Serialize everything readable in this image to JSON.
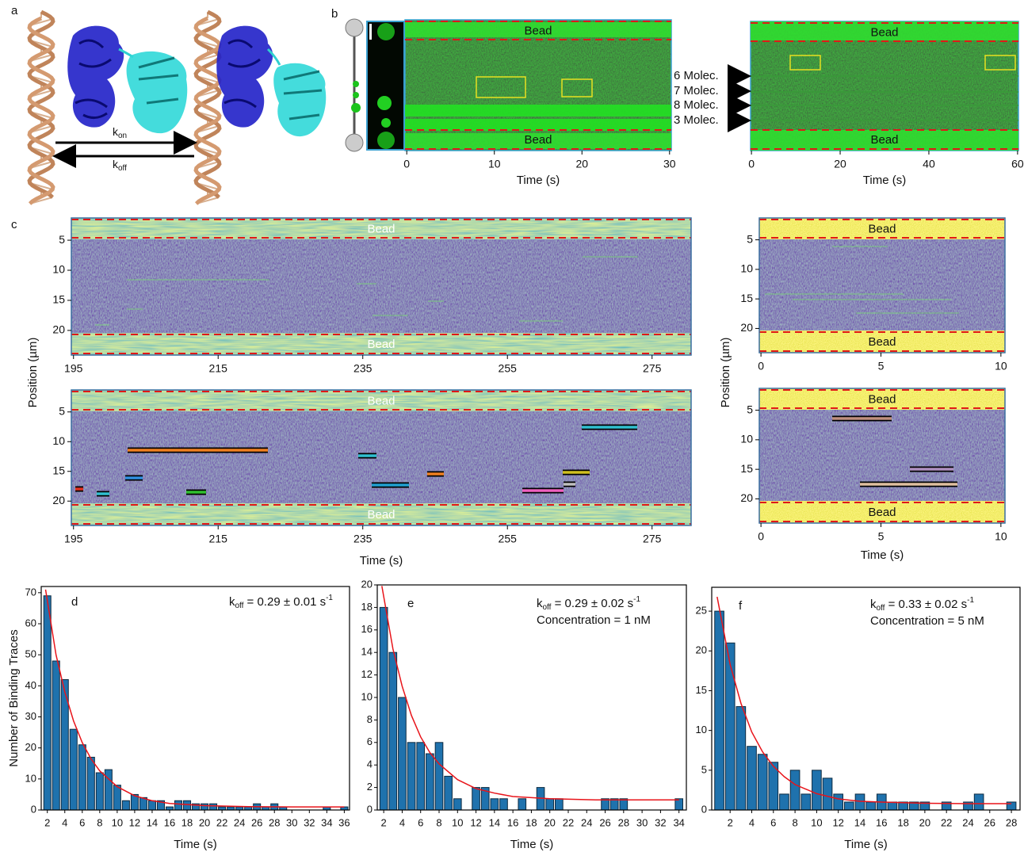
{
  "panel_a": {
    "label": "a",
    "k_on": [
      "k",
      "on"
    ],
    "k_off": [
      "k",
      "off"
    ]
  },
  "panel_b": {
    "label": "b",
    "kymographs": [
      {
        "xlim": [
          -0.2,
          30.2
        ],
        "xticks": [
          0,
          10,
          20,
          30
        ],
        "xlabel": "Time (s)",
        "labels": [
          "Bead",
          "Bead"
        ]
      },
      {
        "xlim": [
          -0.2,
          60.2
        ],
        "xticks": [
          0,
          20,
          40,
          60
        ],
        "xlabel": "Time (s)",
        "labels": [
          "Bead",
          "Bead"
        ]
      }
    ],
    "molecules": [
      "6 Molec.",
      "7 Molec.",
      "8 Molec.",
      "3 Molec."
    ]
  },
  "panel_c": {
    "label": "c",
    "ylabels": [
      "Position (µm)",
      "Position (µm)"
    ],
    "ylim": [
      1.3,
      24.1
    ],
    "yticks": [
      5,
      10,
      15,
      20
    ],
    "kymographs": [
      {
        "xlim": [
          194.7,
          280.4
        ],
        "xticks": [
          195,
          215,
          235,
          255,
          275
        ],
        "labels": [
          "Bead",
          "Bead"
        ]
      },
      {
        "xlim": [
          194.7,
          280.4
        ],
        "xticks": [
          195,
          215,
          235,
          255,
          275
        ],
        "labels": [
          "Bead",
          "Bead"
        ],
        "xlabel": "Time (s)"
      },
      {
        "xlim": [
          -0.07,
          10.17
        ],
        "xticks": [
          0,
          5,
          10
        ],
        "labels": [
          "Bead",
          "Bead"
        ]
      },
      {
        "xlim": [
          -0.07,
          10.17
        ],
        "xticks": [
          0,
          5,
          10
        ],
        "labels": [
          "Bead",
          "Bead"
        ],
        "xlabel": "Time (s)"
      }
    ]
  },
  "chart_data": [
    {
      "type": "histogram",
      "label": "d",
      "annotation": [
        "k",
        "off",
        " = 0.29 ± 0.01 s",
        "-1"
      ],
      "ylabel": "Number of Binding Traces",
      "xlabel": "Time (s)",
      "color": "#1f72ad",
      "bins": [
        1.5,
        2.5,
        3.5,
        4.5,
        5.5,
        6.5,
        7.5,
        8.5,
        9.5,
        10.5,
        11.5,
        12.5,
        13.5,
        14.5,
        15.5,
        16.5,
        17.5,
        18.5,
        19.5,
        20.5,
        21.5,
        22.5,
        23.5,
        24.5,
        25.5,
        26.5,
        27.5,
        28.5,
        29.5,
        30.5,
        31.5,
        32.5,
        33.5,
        34.5,
        35.5,
        36.5
      ],
      "values": [
        69,
        48,
        42,
        26,
        21,
        17,
        12,
        13,
        8,
        3,
        5,
        4,
        3,
        3,
        1,
        3,
        3,
        2,
        2,
        2,
        1,
        1,
        1,
        1,
        2,
        1,
        2,
        1,
        0,
        0,
        0,
        0,
        1,
        0,
        1
      ],
      "xlim": [
        1.3,
        36.6
      ],
      "ylim": [
        0,
        72
      ],
      "xticks": [
        2,
        4,
        6,
        8,
        10,
        12,
        14,
        16,
        18,
        20,
        22,
        24,
        26,
        28,
        30,
        32,
        34,
        36
      ],
      "yticks": [
        0,
        10,
        20,
        30,
        40,
        50,
        60,
        70
      ],
      "fit": {
        "color": "#e8141a",
        "x": [
          1.8,
          3,
          4,
          5,
          6,
          7,
          8,
          10,
          12,
          14,
          16,
          20,
          25,
          30,
          36
        ],
        "values": [
          71,
          50,
          38,
          28.7,
          21.7,
          16.5,
          12.6,
          7.5,
          4.6,
          3,
          2.1,
          1.4,
          1.1,
          1,
          1
        ]
      }
    },
    {
      "type": "histogram",
      "label": "e",
      "annotation": [
        "k",
        "off",
        " = 0.29 ± 0.02 s",
        "-1"
      ],
      "note": "Concentration = 1 nM",
      "xlabel": "Time (s)",
      "color": "#1f72ad",
      "bins": [
        1.5,
        2.5,
        3.5,
        4.5,
        5.5,
        6.5,
        7.5,
        8.5,
        9.5,
        10.5,
        11.5,
        12.5,
        13.5,
        14.5,
        15.5,
        16.5,
        17.5,
        18.5,
        19.5,
        20.5,
        21.5,
        22.5,
        23.5,
        24.5,
        25.5,
        26.5,
        27.5,
        28.5,
        29.5,
        30.5,
        31.5,
        32.5,
        33.5,
        34.5
      ],
      "values": [
        18,
        14,
        10,
        6,
        6,
        5,
        6,
        3,
        1,
        0,
        2,
        2,
        1,
        1,
        0,
        1,
        0,
        2,
        1,
        1,
        0,
        0,
        0,
        0,
        1,
        1,
        1,
        0,
        0,
        0,
        0,
        0,
        1
      ],
      "xlim": [
        1.3,
        34.8
      ],
      "ylim": [
        0,
        20
      ],
      "xticks": [
        2,
        4,
        6,
        8,
        10,
        12,
        14,
        16,
        18,
        20,
        22,
        24,
        26,
        28,
        30,
        32,
        34
      ],
      "yticks": [
        0,
        2,
        4,
        6,
        8,
        10,
        12,
        14,
        16,
        18,
        20
      ],
      "fit": {
        "color": "#e8141a",
        "x": [
          1.8,
          3,
          4,
          5,
          6,
          7,
          8,
          10,
          12,
          14,
          16,
          20,
          25,
          30,
          34
        ],
        "values": [
          19.9,
          14.3,
          11,
          8.4,
          6.5,
          5.1,
          4.1,
          2.7,
          1.9,
          1.5,
          1.2,
          1,
          0.9,
          0.9,
          0.9
        ]
      }
    },
    {
      "type": "histogram",
      "label": "f",
      "annotation": [
        "k",
        "off",
        " = 0.33 ± 0.02 s",
        "-1"
      ],
      "note": "Concentration = 5 nM",
      "xlabel": "Time (s)",
      "color": "#1f72ad",
      "bins": [
        0.5,
        1.5,
        2.5,
        3.5,
        4.5,
        5.5,
        6.5,
        7.5,
        8.5,
        9.5,
        10.5,
        11.5,
        12.5,
        13.5,
        14.5,
        15.5,
        16.5,
        17.5,
        18.5,
        19.5,
        20.5,
        21.5,
        22.5,
        23.5,
        24.5,
        25.5,
        26.5,
        27.5,
        28.5
      ],
      "values": [
        25,
        21,
        13,
        8,
        7,
        6,
        2,
        5,
        2,
        5,
        4,
        2,
        1,
        2,
        1,
        2,
        1,
        1,
        1,
        1,
        0,
        1,
        0,
        1,
        2,
        0,
        0,
        1
      ],
      "xlim": [
        0.3,
        28.8
      ],
      "ylim": [
        0,
        28
      ],
      "xticks": [
        2,
        4,
        6,
        8,
        10,
        12,
        14,
        16,
        18,
        20,
        22,
        24,
        26,
        28
      ],
      "yticks": [
        0,
        5,
        10,
        15,
        20,
        25
      ],
      "fit": {
        "color": "#e8141a",
        "x": [
          0.8,
          2,
          3,
          4,
          5,
          6,
          7,
          8,
          10,
          12,
          14,
          16,
          20,
          24,
          28
        ],
        "values": [
          26.8,
          18.3,
          13.4,
          9.8,
          7.3,
          5.5,
          4.2,
          3.2,
          2.05,
          1.4,
          1.1,
          1,
          0.85,
          0.8,
          0.8
        ]
      }
    }
  ]
}
